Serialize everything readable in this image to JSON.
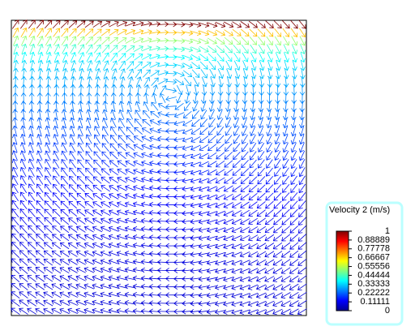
{
  "chart_data": {
    "type": "quiver",
    "colorbar": {
      "title": "Velocity  2 (m/s)",
      "clim": [
        0,
        1
      ],
      "ticks": [
        1,
        0.88889,
        0.77778,
        0.66667,
        0.55556,
        0.44444,
        0.33333,
        0.22222,
        0.11111,
        0
      ],
      "colormap": [
        "#00008f",
        "#0000ff",
        "#0080ff",
        "#00ffff",
        "#80ff80",
        "#ffff00",
        "#ff8000",
        "#ff0000",
        "#800000"
      ]
    }
  }
}
